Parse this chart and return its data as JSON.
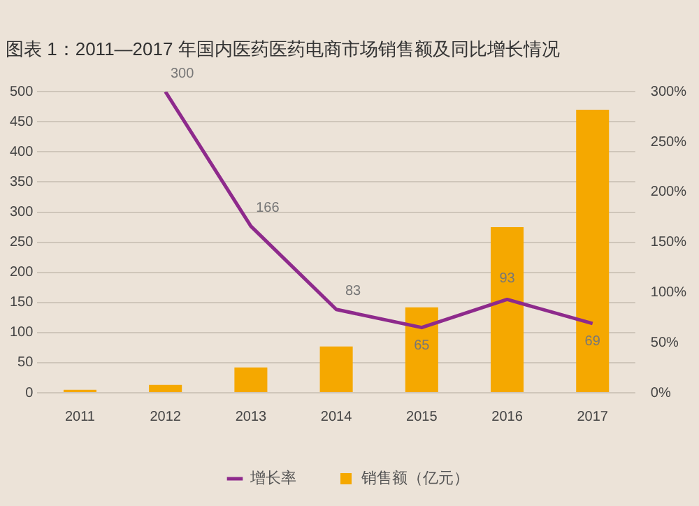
{
  "chart_data": {
    "type": "bar",
    "title": "图表 1：2011—2017 年国内医药医药电商市场销售额及同比增长情况",
    "categories": [
      "2011",
      "2012",
      "2013",
      "2014",
      "2015",
      "2016",
      "2017"
    ],
    "series": [
      {
        "name": "销售额（亿元）",
        "color": "#f5a800",
        "values": [
          5,
          13,
          42,
          77,
          142,
          275,
          470
        ]
      },
      {
        "name": "增长率",
        "type": "line",
        "axis": "y2",
        "color": "#8e2a8c",
        "values": [
          null,
          300,
          166,
          83,
          65,
          93,
          69
        ],
        "value_labels": [
          null,
          "300",
          "166",
          "83",
          "65",
          "93",
          "69"
        ]
      }
    ],
    "ylim": [
      0,
      500
    ],
    "yticks": [
      0,
      50,
      100,
      150,
      200,
      250,
      300,
      350,
      400,
      450,
      500
    ],
    "y2lim": [
      0,
      300
    ],
    "y2ticks": [
      {
        "value": 0,
        "label": "0%"
      },
      {
        "value": 50,
        "label": "50%"
      },
      {
        "value": 100,
        "label": "100%"
      },
      {
        "value": 150,
        "label": "150%"
      },
      {
        "value": 200,
        "label": "200%"
      },
      {
        "value": 250,
        "label": "250%"
      },
      {
        "value": 300,
        "label": "300%"
      }
    ],
    "grid": "y",
    "legend": "bottom",
    "marker": "none"
  }
}
